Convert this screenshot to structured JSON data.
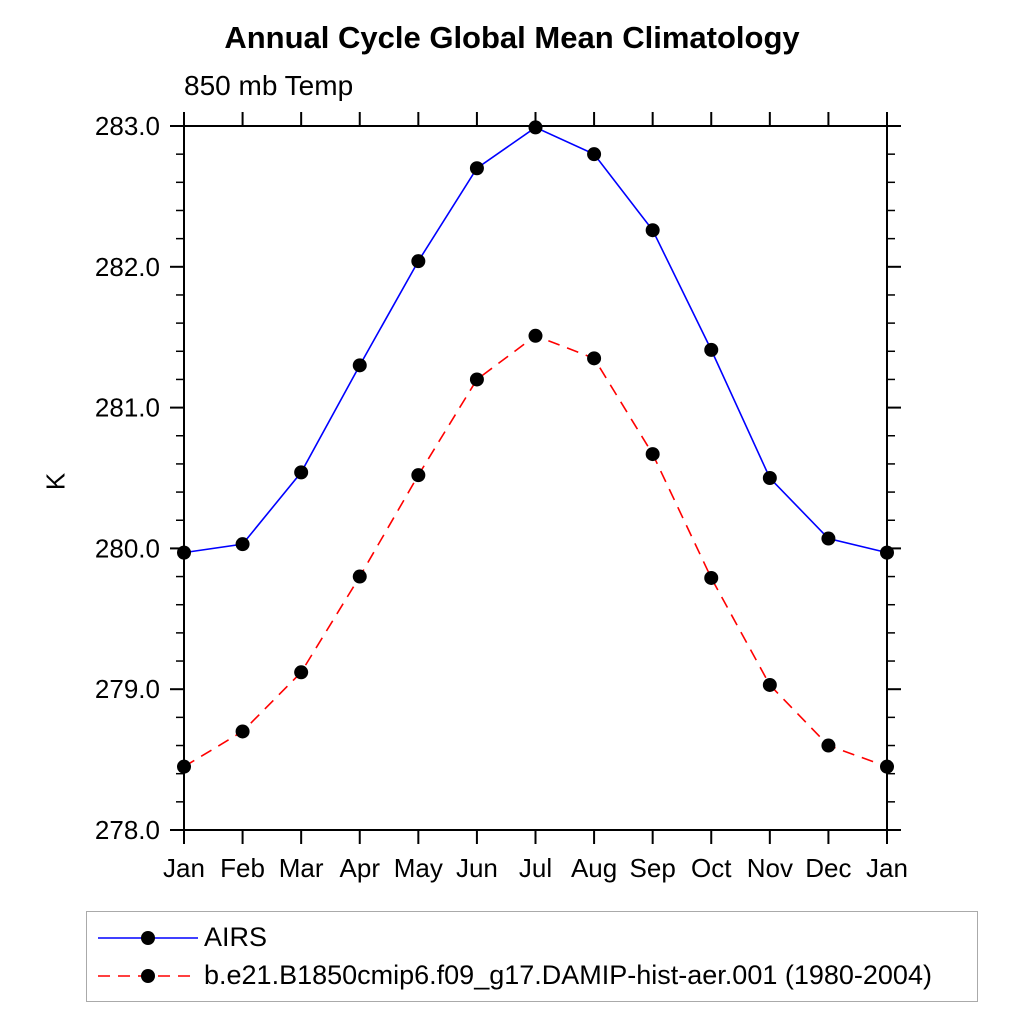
{
  "title": "Annual Cycle Global Mean Climatology",
  "subtitle": "850 mb Temp",
  "y_axis_label": "K",
  "colors": {
    "airs": "#0000ff",
    "model": "#ff0000",
    "marker": "#000000",
    "axis": "#000000",
    "legend_border": "#aaaaaa"
  },
  "legend": {
    "items": [
      {
        "label": "AIRS",
        "style": "solid",
        "color": "#0000ff"
      },
      {
        "label": "b.e21.B1850cmip6.f09_g17.DAMIP-hist-aer.001 (1980-2004)",
        "style": "dashed",
        "color": "#ff0000"
      }
    ]
  },
  "chart_data": {
    "type": "line",
    "title": "Annual Cycle Global Mean Climatology",
    "subtitle": "850 mb Temp",
    "xlabel": "",
    "ylabel": "K",
    "categories": [
      "Jan",
      "Feb",
      "Mar",
      "Apr",
      "May",
      "Jun",
      "Jul",
      "Aug",
      "Sep",
      "Oct",
      "Nov",
      "Dec",
      "Jan"
    ],
    "series": [
      {
        "name": "AIRS",
        "color": "#0000ff",
        "line_style": "solid",
        "marker": "filled-circle",
        "values": [
          279.97,
          280.03,
          280.54,
          281.3,
          282.04,
          282.7,
          282.99,
          282.8,
          282.26,
          281.41,
          280.5,
          280.07,
          279.97
        ]
      },
      {
        "name": "b.e21.B1850cmip6.f09_g17.DAMIP-hist-aer.001 (1980-2004)",
        "color": "#ff0000",
        "line_style": "dashed",
        "marker": "filled-circle",
        "values": [
          278.45,
          278.7,
          279.12,
          279.8,
          280.52,
          281.2,
          281.51,
          281.35,
          280.67,
          279.79,
          279.03,
          278.6,
          278.45
        ]
      }
    ],
    "ylim": [
      278.0,
      283.0
    ],
    "y_major_ticks": [
      278.0,
      279.0,
      280.0,
      281.0,
      282.0,
      283.0
    ],
    "y_tick_labels": [
      "278.0",
      "279.0",
      "280.0",
      "281.0",
      "282.0",
      "283.0"
    ],
    "y_minor_step": 0.2,
    "grid": false,
    "legend_position": "bottom-left-box"
  }
}
